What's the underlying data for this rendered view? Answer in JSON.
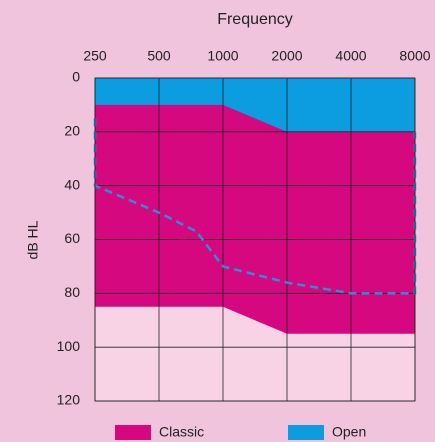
{
  "chart_data": {
    "type": "area",
    "title": "Frequency",
    "ylabel": "dB HL",
    "x": [
      250,
      1000,
      2000,
      8000
    ],
    "xlim": [
      250,
      8000
    ],
    "xticks": [
      250,
      500,
      1000,
      2000,
      4000,
      8000
    ],
    "xscale": "log",
    "ylim": [
      0,
      120
    ],
    "yticks": [
      0,
      20,
      40,
      60,
      80,
      100,
      120
    ],
    "yinverted": true,
    "grid": true,
    "series": [
      {
        "name": "Classic",
        "color": "#d6087f",
        "values": [
          85,
          85,
          95,
          95
        ]
      },
      {
        "name": "Open",
        "color": "#0b9de0",
        "values": [
          10,
          10,
          20,
          20
        ]
      }
    ],
    "line": {
      "color": "#2a8fd6",
      "dashed": true,
      "x": [
        250,
        250,
        500,
        750,
        1000,
        2000,
        4000,
        8000,
        8000
      ],
      "values": [
        15,
        40,
        50,
        57,
        70,
        76,
        80,
        80,
        20
      ]
    },
    "legend": "bottom"
  }
}
